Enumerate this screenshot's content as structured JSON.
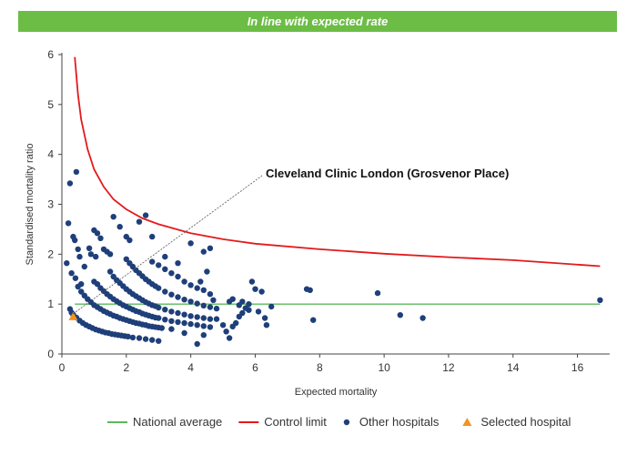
{
  "banner": {
    "text": "In line with expected rate",
    "color": "#6cbd45"
  },
  "chart_data": {
    "type": "scatter",
    "xlabel": "Expected mortality",
    "ylabel": "Standardised mortality ratio",
    "xlim": [
      0,
      17
    ],
    "ylim": [
      0,
      6
    ],
    "xticks": [
      0,
      2,
      4,
      6,
      8,
      10,
      12,
      14,
      16
    ],
    "yticks": [
      0,
      1,
      2,
      3,
      4,
      5,
      6
    ],
    "grid": false,
    "legend_position": "bottom",
    "annotation": {
      "text": "Cleveland Clinic London (Grosvenor Place)",
      "target": "selected-hospital"
    },
    "series": [
      {
        "name": "National average",
        "kind": "line",
        "color": "#5cb85c",
        "x": [
          0.4,
          16.7
        ],
        "y": [
          1,
          1
        ]
      },
      {
        "name": "Control limit",
        "kind": "line",
        "color": "#e31a1c",
        "x": [
          0.4,
          0.5,
          0.6,
          0.8,
          1.0,
          1.3,
          1.6,
          2.0,
          2.5,
          3.0,
          4.0,
          5.0,
          6.0,
          8.0,
          10.0,
          12.0,
          14.0,
          16.7
        ],
        "y": [
          5.95,
          5.2,
          4.7,
          4.1,
          3.7,
          3.35,
          3.1,
          2.9,
          2.72,
          2.6,
          2.42,
          2.3,
          2.21,
          2.1,
          2.01,
          1.94,
          1.88,
          1.76
        ]
      },
      {
        "name": "Other hospitals",
        "kind": "scatter",
        "color": "#1f3f7a",
        "points": [
          [
            0.15,
            1.82
          ],
          [
            0.2,
            2.62
          ],
          [
            0.25,
            3.42
          ],
          [
            0.3,
            1.62
          ],
          [
            0.35,
            2.35
          ],
          [
            0.4,
            2.28
          ],
          [
            0.42,
            1.52
          ],
          [
            0.45,
            3.65
          ],
          [
            0.5,
            2.1
          ],
          [
            0.55,
            1.95
          ],
          [
            0.6,
            1.4
          ],
          [
            0.7,
            1.75
          ],
          [
            0.85,
            2.12
          ],
          [
            0.9,
            2.0
          ],
          [
            1.0,
            2.48
          ],
          [
            1.05,
            1.95
          ],
          [
            1.1,
            2.42
          ],
          [
            1.2,
            2.32
          ],
          [
            1.3,
            2.1
          ],
          [
            1.4,
            2.05
          ],
          [
            1.5,
            2.0
          ],
          [
            1.6,
            2.75
          ],
          [
            1.8,
            2.55
          ],
          [
            2.0,
            2.35
          ],
          [
            2.1,
            2.28
          ],
          [
            2.4,
            2.65
          ],
          [
            2.6,
            2.78
          ],
          [
            2.8,
            2.35
          ],
          [
            3.2,
            1.95
          ],
          [
            3.6,
            1.82
          ],
          [
            4.0,
            2.22
          ],
          [
            4.4,
            2.05
          ],
          [
            4.6,
            2.12
          ],
          [
            0.25,
            0.9
          ],
          [
            0.3,
            0.83
          ],
          [
            0.35,
            0.79
          ],
          [
            0.45,
            0.73
          ],
          [
            0.55,
            0.67
          ],
          [
            0.65,
            0.62
          ],
          [
            0.75,
            0.58
          ],
          [
            0.85,
            0.55
          ],
          [
            0.95,
            0.52
          ],
          [
            1.05,
            0.49
          ],
          [
            1.15,
            0.47
          ],
          [
            1.25,
            0.45
          ],
          [
            1.35,
            0.43
          ],
          [
            1.45,
            0.42
          ],
          [
            1.55,
            0.4
          ],
          [
            1.65,
            0.39
          ],
          [
            1.75,
            0.38
          ],
          [
            1.85,
            0.37
          ],
          [
            1.95,
            0.36
          ],
          [
            2.05,
            0.35
          ],
          [
            2.2,
            0.33
          ],
          [
            2.4,
            0.32
          ],
          [
            2.6,
            0.3
          ],
          [
            2.8,
            0.28
          ],
          [
            3.0,
            0.26
          ],
          [
            0.5,
            1.35
          ],
          [
            0.6,
            1.25
          ],
          [
            0.7,
            1.17
          ],
          [
            0.8,
            1.1
          ],
          [
            0.9,
            1.04
          ],
          [
            1.0,
            0.98
          ],
          [
            1.1,
            0.94
          ],
          [
            1.2,
            0.9
          ],
          [
            1.3,
            0.86
          ],
          [
            1.4,
            0.83
          ],
          [
            1.5,
            0.8
          ],
          [
            1.6,
            0.77
          ],
          [
            1.7,
            0.75
          ],
          [
            1.8,
            0.72
          ],
          [
            1.9,
            0.7
          ],
          [
            2.0,
            0.68
          ],
          [
            2.1,
            0.66
          ],
          [
            2.2,
            0.64
          ],
          [
            2.3,
            0.62
          ],
          [
            2.4,
            0.61
          ],
          [
            2.5,
            0.59
          ],
          [
            2.6,
            0.58
          ],
          [
            2.7,
            0.56
          ],
          [
            2.8,
            0.55
          ],
          [
            2.9,
            0.54
          ],
          [
            3.0,
            0.53
          ],
          [
            3.1,
            0.52
          ],
          [
            1.0,
            1.45
          ],
          [
            1.1,
            1.4
          ],
          [
            1.2,
            1.32
          ],
          [
            1.3,
            1.26
          ],
          [
            1.4,
            1.2
          ],
          [
            1.5,
            1.15
          ],
          [
            1.6,
            1.1
          ],
          [
            1.7,
            1.06
          ],
          [
            1.8,
            1.02
          ],
          [
            1.9,
            0.98
          ],
          [
            2.0,
            0.95
          ],
          [
            2.1,
            0.92
          ],
          [
            2.2,
            0.89
          ],
          [
            2.3,
            0.86
          ],
          [
            2.4,
            0.84
          ],
          [
            2.5,
            0.81
          ],
          [
            2.6,
            0.79
          ],
          [
            2.7,
            0.77
          ],
          [
            2.8,
            0.75
          ],
          [
            2.9,
            0.73
          ],
          [
            3.0,
            0.72
          ],
          [
            3.2,
            0.69
          ],
          [
            3.4,
            0.66
          ],
          [
            3.6,
            0.64
          ],
          [
            3.8,
            0.62
          ],
          [
            4.0,
            0.6
          ],
          [
            4.2,
            0.58
          ],
          [
            4.4,
            0.56
          ],
          [
            4.6,
            0.54
          ],
          [
            1.5,
            1.65
          ],
          [
            1.6,
            1.55
          ],
          [
            1.7,
            1.48
          ],
          [
            1.8,
            1.42
          ],
          [
            1.9,
            1.36
          ],
          [
            2.0,
            1.3
          ],
          [
            2.1,
            1.25
          ],
          [
            2.2,
            1.2
          ],
          [
            2.3,
            1.16
          ],
          [
            2.4,
            1.12
          ],
          [
            2.5,
            1.08
          ],
          [
            2.6,
            1.04
          ],
          [
            2.7,
            1.01
          ],
          [
            2.8,
            0.98
          ],
          [
            2.9,
            0.96
          ],
          [
            3.0,
            0.93
          ],
          [
            3.2,
            0.89
          ],
          [
            3.4,
            0.85
          ],
          [
            3.6,
            0.82
          ],
          [
            3.8,
            0.79
          ],
          [
            4.0,
            0.76
          ],
          [
            4.2,
            0.74
          ],
          [
            4.4,
            0.72
          ],
          [
            4.6,
            0.7
          ],
          [
            2.0,
            1.9
          ],
          [
            2.1,
            1.82
          ],
          [
            2.2,
            1.75
          ],
          [
            2.3,
            1.68
          ],
          [
            2.4,
            1.62
          ],
          [
            2.5,
            1.56
          ],
          [
            2.6,
            1.5
          ],
          [
            2.7,
            1.45
          ],
          [
            2.8,
            1.4
          ],
          [
            2.9,
            1.36
          ],
          [
            3.0,
            1.32
          ],
          [
            3.2,
            1.25
          ],
          [
            3.4,
            1.19
          ],
          [
            3.6,
            1.14
          ],
          [
            3.8,
            1.09
          ],
          [
            4.0,
            1.05
          ],
          [
            4.2,
            1.01
          ],
          [
            4.4,
            0.97
          ],
          [
            4.6,
            0.94
          ],
          [
            4.8,
            0.91
          ],
          [
            2.8,
            1.85
          ],
          [
            3.0,
            1.78
          ],
          [
            3.2,
            1.7
          ],
          [
            3.4,
            1.62
          ],
          [
            3.6,
            1.55
          ],
          [
            3.8,
            1.45
          ],
          [
            4.0,
            1.38
          ],
          [
            4.2,
            1.32
          ],
          [
            4.4,
            1.28
          ],
          [
            4.5,
            1.65
          ],
          [
            4.6,
            1.2
          ],
          [
            4.7,
            1.08
          ],
          [
            4.3,
            1.45
          ],
          [
            3.4,
            0.5
          ],
          [
            3.8,
            0.42
          ],
          [
            4.2,
            0.2
          ],
          [
            4.4,
            0.38
          ],
          [
            4.8,
            0.7
          ],
          [
            5.0,
            0.58
          ],
          [
            5.1,
            0.45
          ],
          [
            5.2,
            0.32
          ],
          [
            5.3,
            0.55
          ],
          [
            5.4,
            0.62
          ],
          [
            5.5,
            0.75
          ],
          [
            5.6,
            0.82
          ],
          [
            5.8,
            0.88
          ],
          [
            5.2,
            1.05
          ],
          [
            5.3,
            1.1
          ],
          [
            5.5,
            0.98
          ],
          [
            5.6,
            1.05
          ],
          [
            5.7,
            0.92
          ],
          [
            5.8,
            1.0
          ],
          [
            5.9,
            1.45
          ],
          [
            6.0,
            1.3
          ],
          [
            6.1,
            0.85
          ],
          [
            6.2,
            1.25
          ],
          [
            6.3,
            0.72
          ],
          [
            6.35,
            0.58
          ],
          [
            6.5,
            0.95
          ],
          [
            7.6,
            1.3
          ],
          [
            7.7,
            1.28
          ],
          [
            7.8,
            0.68
          ],
          [
            9.8,
            1.22
          ],
          [
            10.5,
            0.78
          ],
          [
            11.2,
            0.72
          ],
          [
            16.7,
            1.08
          ]
        ]
      },
      {
        "name": "Selected hospital",
        "kind": "scatter",
        "marker": "triangle",
        "color": "#f29422",
        "points": [
          [
            0.35,
            0.75
          ]
        ]
      }
    ]
  }
}
